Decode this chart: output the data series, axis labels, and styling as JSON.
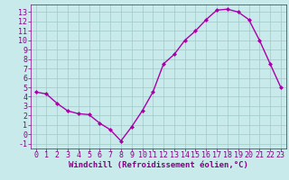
{
  "x": [
    0,
    1,
    2,
    3,
    4,
    5,
    6,
    7,
    8,
    9,
    10,
    11,
    12,
    13,
    14,
    15,
    16,
    17,
    18,
    19,
    20,
    21,
    22,
    23
  ],
  "y": [
    4.5,
    4.3,
    3.3,
    2.5,
    2.2,
    2.1,
    1.2,
    0.5,
    -0.7,
    0.8,
    2.5,
    4.5,
    7.5,
    8.5,
    10.0,
    11.0,
    12.2,
    13.2,
    13.3,
    13.0,
    12.2,
    10.0,
    7.5,
    5.0
  ],
  "line_color": "#aa00aa",
  "marker": "D",
  "marker_size": 2.0,
  "bg_color": "#c8eaea",
  "grid_color": "#a0c8c8",
  "xlabel": "Windchill (Refroidissement éolien,°C)",
  "xlim": [
    -0.5,
    23.5
  ],
  "ylim": [
    -1.5,
    13.8
  ],
  "yticks": [
    -1,
    0,
    1,
    2,
    3,
    4,
    5,
    6,
    7,
    8,
    9,
    10,
    11,
    12,
    13
  ],
  "xticks": [
    0,
    1,
    2,
    3,
    4,
    5,
    6,
    7,
    8,
    9,
    10,
    11,
    12,
    13,
    14,
    15,
    16,
    17,
    18,
    19,
    20,
    21,
    22,
    23
  ],
  "tick_color": "#880088",
  "label_fontsize": 6.5,
  "tick_fontsize": 6.0
}
